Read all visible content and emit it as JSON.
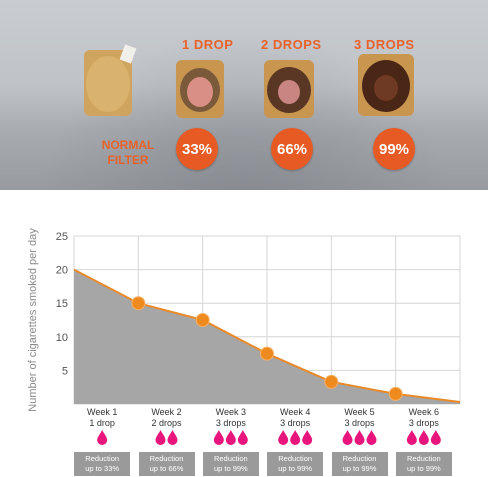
{
  "photo": {
    "labels": {
      "normal": "NORMAL FILTER",
      "drop1": "1 DROP",
      "drop2": "2 DROPS",
      "drop3": "3 DROPS"
    },
    "percentages": [
      "33%",
      "66%",
      "99%"
    ]
  },
  "colors": {
    "accent": "#e8622a",
    "drop": "#e8157d",
    "area": "#a6a6a6",
    "line": "#e88a2a",
    "marker": "#ef8a1f"
  },
  "chart_data": {
    "type": "area",
    "ylabel": "Number of cigarettes smoked per day",
    "ylim": [
      0,
      25
    ],
    "yticks": [
      5,
      10,
      15,
      20,
      25
    ],
    "x": [
      0,
      1,
      2,
      3,
      4,
      5,
      6
    ],
    "values": [
      20,
      15,
      12.5,
      7.5,
      3.3,
      1.5,
      0.3
    ],
    "markers": [
      1,
      2,
      3,
      4,
      5
    ],
    "grid": true,
    "weeks": [
      {
        "week": "Week 1",
        "drops": "1 drop",
        "drop_count": 1,
        "reduction": "Reduction up to 33%"
      },
      {
        "week": "Week 2",
        "drops": "2 drops",
        "drop_count": 2,
        "reduction": "Reduction up to 66%"
      },
      {
        "week": "Week 3",
        "drops": "3 drops",
        "drop_count": 3,
        "reduction": "Reduction up to 99%"
      },
      {
        "week": "Week 4",
        "drops": "3 drops",
        "drop_count": 3,
        "reduction": "Reduction up to 99%"
      },
      {
        "week": "Week 5",
        "drops": "3 drops",
        "drop_count": 3,
        "reduction": "Reduction up to 99%"
      },
      {
        "week": "Week 6",
        "drops": "3 drops",
        "drop_count": 3,
        "reduction": "Reduction up to 99%"
      }
    ]
  }
}
